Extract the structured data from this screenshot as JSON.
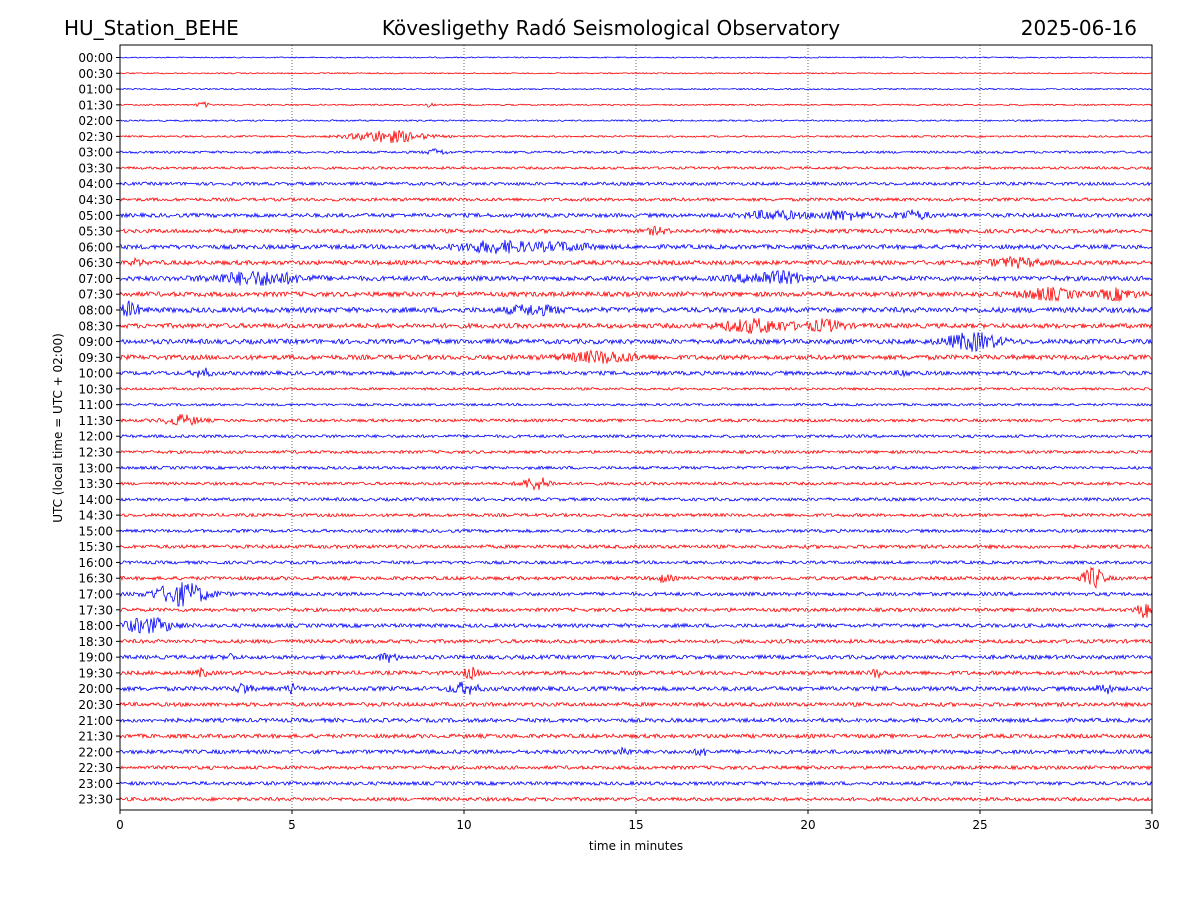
{
  "header": {
    "station": "HU_Station_BEHE",
    "observatory": "Kövesligethy Radó Seismological Observatory",
    "date": "2025-06-16"
  },
  "chart_data": {
    "type": "line",
    "title": "Kövesligethy Radó Seismological Observatory",
    "xlabel": "time in minutes",
    "ylabel": "UTC (local time = UTC + 02:00)",
    "xlim": [
      0,
      30
    ],
    "xticks": [
      0,
      5,
      10,
      15,
      20,
      25,
      30
    ],
    "grid": {
      "vertical_dotted_at": [
        5,
        10,
        15,
        20,
        25
      ]
    },
    "colors": {
      "even_rows": "#0000ff",
      "odd_rows": "#ff0000"
    },
    "rows": [
      "00:00",
      "00:30",
      "01:00",
      "01:30",
      "02:00",
      "02:30",
      "03:00",
      "03:30",
      "04:00",
      "04:30",
      "05:00",
      "05:30",
      "06:00",
      "06:30",
      "07:00",
      "07:30",
      "08:00",
      "08:30",
      "09:00",
      "09:30",
      "10:00",
      "10:30",
      "11:00",
      "11:30",
      "12:00",
      "12:30",
      "13:00",
      "13:30",
      "14:00",
      "14:30",
      "15:00",
      "15:30",
      "16:00",
      "16:30",
      "17:00",
      "17:30",
      "18:00",
      "18:30",
      "19:00",
      "19:30",
      "20:00",
      "20:30",
      "21:00",
      "21:30",
      "22:00",
      "22:30",
      "23:00",
      "23:30"
    ],
    "noise_level": [
      0.6,
      0.6,
      0.7,
      0.7,
      0.8,
      0.9,
      1.2,
      1.3,
      1.6,
      1.6,
      2.0,
      2.0,
      2.2,
      2.2,
      2.4,
      2.4,
      2.6,
      2.4,
      2.4,
      2.4,
      2.0,
      1.2,
      1.2,
      1.5,
      1.5,
      1.5,
      1.5,
      1.5,
      1.6,
      1.6,
      1.6,
      1.8,
      1.6,
      1.8,
      1.8,
      1.8,
      1.9,
      1.9,
      2.0,
      2.0,
      2.2,
      2.0,
      2.0,
      2.0,
      2.0,
      1.8,
      1.8,
      1.8
    ],
    "events": [
      {
        "row": 3,
        "t": 2.4,
        "amp": 3,
        "dur": 0.3
      },
      {
        "row": 3,
        "t": 9.0,
        "amp": 2,
        "dur": 0.2
      },
      {
        "row": 5,
        "t": 7.8,
        "amp": 6,
        "dur": 2.0
      },
      {
        "row": 6,
        "t": 9.2,
        "amp": 3,
        "dur": 0.5
      },
      {
        "row": 10,
        "t": 19.0,
        "amp": 4,
        "dur": 1.5
      },
      {
        "row": 10,
        "t": 21.0,
        "amp": 4,
        "dur": 1.5
      },
      {
        "row": 10,
        "t": 23.0,
        "amp": 4,
        "dur": 1.0
      },
      {
        "row": 11,
        "t": 15.6,
        "amp": 3,
        "dur": 0.6
      },
      {
        "row": 12,
        "t": 11.0,
        "amp": 5,
        "dur": 2.5
      },
      {
        "row": 12,
        "t": 13.0,
        "amp": 3,
        "dur": 1.5
      },
      {
        "row": 13,
        "t": 0.5,
        "amp": 3,
        "dur": 0.3
      },
      {
        "row": 13,
        "t": 26.0,
        "amp": 4,
        "dur": 1.5
      },
      {
        "row": 14,
        "t": 4.0,
        "amp": 6,
        "dur": 2.5
      },
      {
        "row": 14,
        "t": 19.0,
        "amp": 6,
        "dur": 2.0
      },
      {
        "row": 15,
        "t": 27.0,
        "amp": 5,
        "dur": 1.5
      },
      {
        "row": 15,
        "t": 29.0,
        "amp": 5,
        "dur": 1.0
      },
      {
        "row": 16,
        "t": 0.3,
        "amp": 7,
        "dur": 0.5
      },
      {
        "row": 16,
        "t": 12.0,
        "amp": 4,
        "dur": 1.5
      },
      {
        "row": 17,
        "t": 18.5,
        "amp": 6,
        "dur": 2.0
      },
      {
        "row": 17,
        "t": 20.5,
        "amp": 5,
        "dur": 1.0
      },
      {
        "row": 18,
        "t": 24.8,
        "amp": 8,
        "dur": 1.5
      },
      {
        "row": 19,
        "t": 14.0,
        "amp": 5,
        "dur": 2.0
      },
      {
        "row": 20,
        "t": 2.4,
        "amp": 4,
        "dur": 0.5
      },
      {
        "row": 20,
        "t": 22.8,
        "amp": 3,
        "dur": 0.3
      },
      {
        "row": 23,
        "t": 1.8,
        "amp": 5,
        "dur": 1.0
      },
      {
        "row": 27,
        "t": 12.1,
        "amp": 6,
        "dur": 0.8
      },
      {
        "row": 33,
        "t": 28.3,
        "amp": 10,
        "dur": 0.6
      },
      {
        "row": 33,
        "t": 15.8,
        "amp": 3,
        "dur": 0.5
      },
      {
        "row": 34,
        "t": 1.8,
        "amp": 11,
        "dur": 1.5
      },
      {
        "row": 35,
        "t": 29.8,
        "amp": 7,
        "dur": 0.5
      },
      {
        "row": 36,
        "t": 0.8,
        "amp": 7,
        "dur": 1.5
      },
      {
        "row": 38,
        "t": 7.8,
        "amp": 4,
        "dur": 0.5
      },
      {
        "row": 38,
        "t": 3.2,
        "amp": 3,
        "dur": 0.3
      },
      {
        "row": 39,
        "t": 10.2,
        "amp": 5,
        "dur": 0.4
      },
      {
        "row": 39,
        "t": 2.4,
        "amp": 4,
        "dur": 0.3
      },
      {
        "row": 39,
        "t": 22.0,
        "amp": 4,
        "dur": 0.3
      },
      {
        "row": 40,
        "t": 3.6,
        "amp": 5,
        "dur": 0.4
      },
      {
        "row": 40,
        "t": 10.0,
        "amp": 5,
        "dur": 0.8
      },
      {
        "row": 40,
        "t": 5.0,
        "amp": 4,
        "dur": 0.3
      },
      {
        "row": 40,
        "t": 28.6,
        "amp": 5,
        "dur": 0.4
      },
      {
        "row": 44,
        "t": 16.9,
        "amp": 4,
        "dur": 0.3
      },
      {
        "row": 44,
        "t": 14.6,
        "amp": 4,
        "dur": 0.4
      }
    ]
  }
}
